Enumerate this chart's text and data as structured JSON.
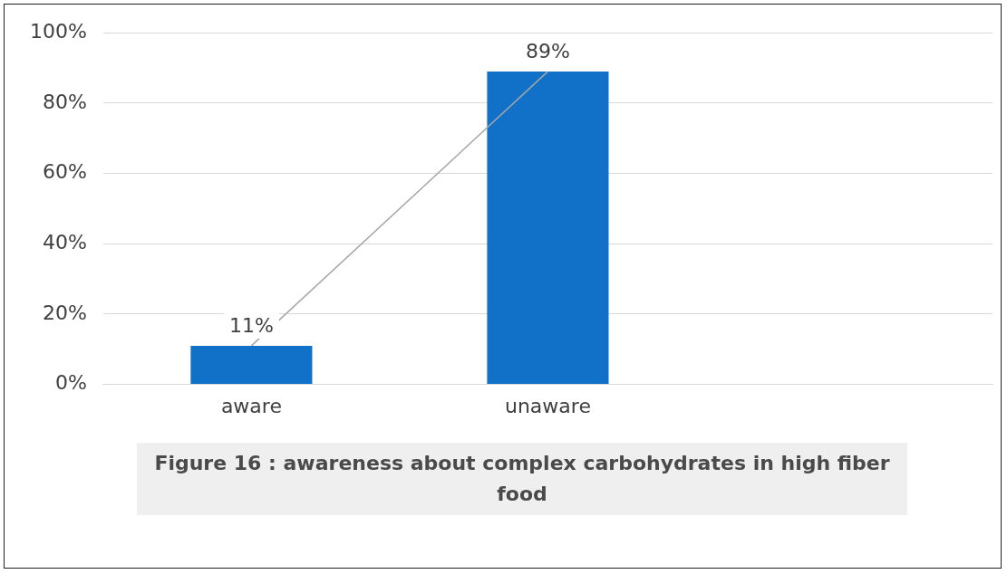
{
  "chart_data": {
    "type": "bar",
    "title": "Figure 16 : awareness about complex carbohydrates in high fiber food",
    "categories": [
      "aware",
      "unaware",
      null
    ],
    "series": [
      {
        "type": "line",
        "color": "#a6a6a6",
        "values": [
          11,
          89,
          null
        ]
      },
      {
        "color": "#1170c8",
        "values": [
          11,
          89,
          null
        ],
        "value_labels": [
          "11%",
          "89%",
          null
        ]
      }
    ],
    "ylim": [
      0,
      100
    ],
    "yticks": [
      {
        "value": 0,
        "label": "0%"
      },
      {
        "value": 20,
        "label": "20%"
      },
      {
        "value": 40,
        "label": "40%"
      },
      {
        "value": 60,
        "label": "60%"
      },
      {
        "value": 80,
        "label": "80%"
      },
      {
        "value": 100,
        "label": "100%"
      }
    ],
    "grid": "y",
    "legend": false,
    "marker": "none",
    "line_style": "solid"
  }
}
